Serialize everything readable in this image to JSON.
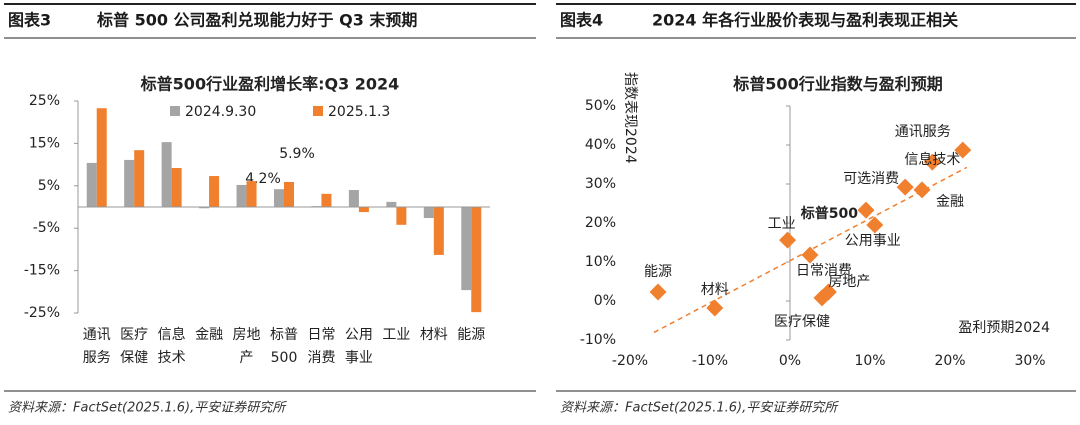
{
  "panels": [
    {
      "label": "图表3",
      "heading": "标普 500 公司盈利兑现能力好于 Q3 末预期",
      "source": "资料来源：FactSet(2025.1.6),平安证券研究所"
    },
    {
      "label": "图表4",
      "heading": "2024 年各行业股价表现与盈利表现正相关",
      "source": "资料来源：FactSet(2025.1.6),平安证券研究所"
    }
  ],
  "chart_data": [
    {
      "type": "bar",
      "title": "标普500行业盈利增长率:Q3 2024",
      "categories": [
        "通讯服务",
        "医疗保健",
        "信息技术",
        "金融",
        "房地产",
        "标普500",
        "日常消费",
        "公用事业",
        "工业",
        "材料",
        "能源"
      ],
      "series": [
        {
          "name": "2024.9.30",
          "color": "#a5a5a5",
          "values": [
            10.4,
            11.1,
            15.3,
            -0.3,
            5.2,
            4.2,
            0.2,
            4.0,
            1.2,
            -2.6,
            -19.6
          ],
          "value_labels": [
            null,
            null,
            null,
            null,
            null,
            "4.2%",
            null,
            null,
            null,
            null,
            null
          ],
          "label_color": "#8c8c8c"
        },
        {
          "name": "2025.1.3",
          "color": "#f07f2e",
          "values": [
            23.3,
            13.4,
            9.2,
            7.3,
            6.1,
            5.9,
            3.1,
            -1.2,
            -4.2,
            -11.3,
            -24.8
          ],
          "value_labels": [
            null,
            null,
            null,
            null,
            null,
            "5.9%",
            null,
            null,
            null,
            null,
            null
          ],
          "label_color": "#e8232a"
        }
      ],
      "ylim": [
        -25,
        25
      ],
      "yticks": [
        {
          "value": -25,
          "label": "-25%"
        },
        {
          "value": -15,
          "label": "-15%"
        },
        {
          "value": -5,
          "label": "-5%"
        },
        {
          "value": 5,
          "label": "5%"
        },
        {
          "value": 15,
          "label": "15%"
        },
        {
          "value": 25,
          "label": "25%"
        }
      ],
      "grid": false,
      "legend": "top"
    },
    {
      "type": "scatter",
      "title": "标普500行业指数与盈利预期",
      "xlabel": "盈利预期2024",
      "ylabel": "指数表现2024",
      "labels": [
        "通讯服务",
        "信息技术",
        "金融",
        "可选消费",
        "标普500",
        "公用事业",
        "工业",
        "日常消费",
        "房地产",
        "医疗保健",
        "能源",
        "材料"
      ],
      "x": [
        21.6,
        17.8,
        16.5,
        14.4,
        9.5,
        10.6,
        -0.3,
        2.5,
        4.8,
        4.0,
        -16.5,
        -9.4
      ],
      "y": [
        38.7,
        35.6,
        28.5,
        29.2,
        23.3,
        19.5,
        15.6,
        11.8,
        2.3,
        0.8,
        2.3,
        -1.8
      ],
      "color": "#f07f2e",
      "trendline": true,
      "xlim": [
        -20,
        30
      ],
      "xticks": [
        {
          "value": -20,
          "label": "-20%"
        },
        {
          "value": -10,
          "label": "-10%"
        },
        {
          "value": 0,
          "label": "0%"
        },
        {
          "value": 10,
          "label": "10%"
        },
        {
          "value": 20,
          "label": "20%"
        },
        {
          "value": 30,
          "label": "30%"
        }
      ],
      "ylim": [
        -10,
        50
      ],
      "yticks": [
        {
          "value": -10,
          "label": "-10%"
        },
        {
          "value": 0,
          "label": "0%"
        },
        {
          "value": 10,
          "label": "10%"
        },
        {
          "value": 20,
          "label": "20%"
        },
        {
          "value": 30,
          "label": "30%"
        },
        {
          "value": 40,
          "label": "40%"
        },
        {
          "value": 50,
          "label": "50%"
        }
      ]
    }
  ]
}
